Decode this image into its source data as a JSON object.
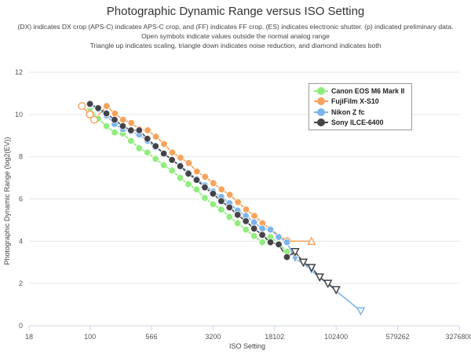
{
  "chart_data": {
    "type": "line",
    "title": "Photographic Dynamic Range versus ISO Setting",
    "subtitle_lines": [
      "(DX) indicates DX crop (APS-C) indicates APS-C crop, and (FF) indicates FF crop. (ES) indicates electronic shutter. (p) indicated preliminary data.",
      "Open symbols indicate values outside the normal analog range",
      "Triangle up indicates scaling, triangle down indicates noise reduction, and diamond indicates both"
    ],
    "xlabel": "ISO Setting",
    "ylabel": "Photographic Dynamic Range (log2(EV))",
    "x_scale": "log",
    "xlim": [
      18,
      3276800
    ],
    "ylim": [
      0,
      12
    ],
    "x_ticks": [
      18,
      100,
      566,
      3200,
      18102,
      102400,
      579262,
      3276800
    ],
    "x_tick_labels": [
      "18",
      "100",
      "566",
      "3200",
      "18102",
      "102400",
      "579262",
      "3276800"
    ],
    "y_ticks": [
      0,
      2,
      4,
      6,
      8,
      10,
      12
    ],
    "grid": "horizontal",
    "legend_position": "top-right",
    "series": [
      {
        "name": "Canon EOS M6 Mark II",
        "color": "#90ed7d",
        "points": [
          {
            "x": 100,
            "y": 10.3,
            "m": "circle"
          },
          {
            "x": 126,
            "y": 9.8,
            "m": "circle"
          },
          {
            "x": 159,
            "y": 9.45,
            "m": "circle"
          },
          {
            "x": 200,
            "y": 9.15,
            "m": "circle"
          },
          {
            "x": 252,
            "y": 9.1,
            "m": "circle"
          },
          {
            "x": 317,
            "y": 8.75,
            "m": "circle"
          },
          {
            "x": 400,
            "y": 8.4,
            "m": "circle"
          },
          {
            "x": 504,
            "y": 8.2,
            "m": "circle"
          },
          {
            "x": 635,
            "y": 7.9,
            "m": "circle"
          },
          {
            "x": 800,
            "y": 7.6,
            "m": "circle"
          },
          {
            "x": 1008,
            "y": 7.35,
            "m": "circle"
          },
          {
            "x": 1270,
            "y": 7.0,
            "m": "circle"
          },
          {
            "x": 1600,
            "y": 6.7,
            "m": "circle"
          },
          {
            "x": 2016,
            "y": 6.45,
            "m": "circle"
          },
          {
            "x": 2540,
            "y": 6.05,
            "m": "circle"
          },
          {
            "x": 3200,
            "y": 5.75,
            "m": "circle"
          },
          {
            "x": 4032,
            "y": 5.5,
            "m": "circle"
          },
          {
            "x": 5080,
            "y": 5.15,
            "m": "circle"
          },
          {
            "x": 6400,
            "y": 4.85,
            "m": "circle"
          },
          {
            "x": 8063,
            "y": 4.55,
            "m": "circle"
          },
          {
            "x": 10159,
            "y": 4.25,
            "m": "circle"
          },
          {
            "x": 12800,
            "y": 3.95,
            "m": "circle"
          },
          {
            "x": 16127,
            "y": 4.2,
            "m": "circle"
          },
          {
            "x": 20319,
            "y": 3.9,
            "m": "circle"
          },
          {
            "x": 25600,
            "y": 3.5,
            "m": "circle"
          }
        ]
      },
      {
        "name": "FujiFilm X-S10",
        "color": "#f7a35c",
        "points": [
          {
            "x": 80,
            "y": 10.4,
            "m": "open-circle"
          },
          {
            "x": 100,
            "y": 10.0,
            "m": "open-circle"
          },
          {
            "x": 113,
            "y": 9.75,
            "m": "open-circle"
          },
          {
            "x": 160,
            "y": 10.4,
            "m": "circle"
          },
          {
            "x": 202,
            "y": 10.05,
            "m": "circle"
          },
          {
            "x": 254,
            "y": 9.75,
            "m": "circle"
          },
          {
            "x": 320,
            "y": 9.6,
            "m": "circle"
          },
          {
            "x": 403,
            "y": 9.3,
            "m": "circle"
          },
          {
            "x": 508,
            "y": 9.25,
            "m": "circle"
          },
          {
            "x": 640,
            "y": 8.95,
            "m": "circle"
          },
          {
            "x": 806,
            "y": 8.6,
            "m": "circle"
          },
          {
            "x": 1016,
            "y": 8.2,
            "m": "circle"
          },
          {
            "x": 1280,
            "y": 7.95,
            "m": "circle"
          },
          {
            "x": 1613,
            "y": 7.7,
            "m": "circle"
          },
          {
            "x": 2032,
            "y": 7.3,
            "m": "circle"
          },
          {
            "x": 2560,
            "y": 7.05,
            "m": "circle"
          },
          {
            "x": 3225,
            "y": 6.75,
            "m": "circle"
          },
          {
            "x": 4064,
            "y": 6.45,
            "m": "circle"
          },
          {
            "x": 5120,
            "y": 6.2,
            "m": "circle"
          },
          {
            "x": 6451,
            "y": 5.85,
            "m": "circle"
          },
          {
            "x": 8127,
            "y": 5.5,
            "m": "circle"
          },
          {
            "x": 10240,
            "y": 5.2,
            "m": "circle"
          },
          {
            "x": 12902,
            "y": 4.85,
            "m": "circle"
          },
          {
            "x": 25600,
            "y": 4.0,
            "m": "open-circle"
          },
          {
            "x": 51200,
            "y": 4.0,
            "m": "open-triangle-up"
          }
        ]
      },
      {
        "name": "Nikon Z fc",
        "color": "#7cb5ec",
        "points": [
          {
            "x": 100,
            "y": 10.45,
            "m": "circle"
          },
          {
            "x": 126,
            "y": 10.25,
            "m": "circle"
          },
          {
            "x": 159,
            "y": 9.95,
            "m": "circle"
          },
          {
            "x": 200,
            "y": 9.55,
            "m": "circle"
          },
          {
            "x": 252,
            "y": 9.3,
            "m": "circle"
          },
          {
            "x": 317,
            "y": 9.2,
            "m": "circle"
          },
          {
            "x": 400,
            "y": 9.05,
            "m": "circle"
          },
          {
            "x": 504,
            "y": 8.75,
            "m": "circle"
          },
          {
            "x": 635,
            "y": 8.45,
            "m": "circle"
          },
          {
            "x": 800,
            "y": 8.15,
            "m": "circle"
          },
          {
            "x": 1008,
            "y": 7.85,
            "m": "circle"
          },
          {
            "x": 1270,
            "y": 7.6,
            "m": "circle"
          },
          {
            "x": 1600,
            "y": 7.25,
            "m": "circle"
          },
          {
            "x": 2016,
            "y": 6.95,
            "m": "circle"
          },
          {
            "x": 2540,
            "y": 6.65,
            "m": "circle"
          },
          {
            "x": 3200,
            "y": 6.35,
            "m": "circle"
          },
          {
            "x": 4032,
            "y": 6.1,
            "m": "circle"
          },
          {
            "x": 5080,
            "y": 5.8,
            "m": "circle"
          },
          {
            "x": 6400,
            "y": 5.45,
            "m": "circle"
          },
          {
            "x": 8063,
            "y": 5.2,
            "m": "circle"
          },
          {
            "x": 10159,
            "y": 4.9,
            "m": "circle"
          },
          {
            "x": 12800,
            "y": 4.6,
            "m": "circle"
          },
          {
            "x": 16127,
            "y": 4.55,
            "m": "circle"
          },
          {
            "x": 20319,
            "y": 4.2,
            "m": "circle"
          },
          {
            "x": 25600,
            "y": 3.95,
            "m": "circle"
          },
          {
            "x": 32254,
            "y": 3.15,
            "m": "triangle-down"
          },
          {
            "x": 40637,
            "y": 2.95,
            "m": "triangle-down"
          },
          {
            "x": 51200,
            "y": 2.6,
            "m": "triangle-down"
          },
          {
            "x": 204800,
            "y": 0.7,
            "m": "open-triangle-down"
          }
        ]
      },
      {
        "name": "Sony ILCE-6400",
        "color": "#434348",
        "points": [
          {
            "x": 100,
            "y": 10.5,
            "m": "circle"
          },
          {
            "x": 126,
            "y": 10.3,
            "m": "circle"
          },
          {
            "x": 159,
            "y": 10.05,
            "m": "circle"
          },
          {
            "x": 200,
            "y": 9.75,
            "m": "circle"
          },
          {
            "x": 252,
            "y": 9.45,
            "m": "circle"
          },
          {
            "x": 317,
            "y": 9.25,
            "m": "circle"
          },
          {
            "x": 400,
            "y": 9.25,
            "m": "circle"
          },
          {
            "x": 504,
            "y": 8.85,
            "m": "circle"
          },
          {
            "x": 635,
            "y": 8.5,
            "m": "circle"
          },
          {
            "x": 800,
            "y": 8.15,
            "m": "circle"
          },
          {
            "x": 1008,
            "y": 7.85,
            "m": "circle"
          },
          {
            "x": 1270,
            "y": 7.55,
            "m": "circle"
          },
          {
            "x": 1600,
            "y": 7.2,
            "m": "circle"
          },
          {
            "x": 2016,
            "y": 6.9,
            "m": "circle"
          },
          {
            "x": 2540,
            "y": 6.55,
            "m": "circle"
          },
          {
            "x": 3200,
            "y": 6.25,
            "m": "circle"
          },
          {
            "x": 4032,
            "y": 5.9,
            "m": "circle"
          },
          {
            "x": 5080,
            "y": 5.6,
            "m": "circle"
          },
          {
            "x": 6400,
            "y": 5.25,
            "m": "circle"
          },
          {
            "x": 8063,
            "y": 4.95,
            "m": "circle"
          },
          {
            "x": 10159,
            "y": 4.6,
            "m": "circle"
          },
          {
            "x": 12800,
            "y": 4.3,
            "m": "circle"
          },
          {
            "x": 16127,
            "y": 3.95,
            "m": "circle"
          },
          {
            "x": 20319,
            "y": 3.85,
            "m": "circle"
          },
          {
            "x": 25600,
            "y": 3.25,
            "m": "circle"
          },
          {
            "x": 32254,
            "y": 3.5,
            "m": "open-triangle-down"
          },
          {
            "x": 40637,
            "y": 3.0,
            "m": "open-triangle-down"
          },
          {
            "x": 51200,
            "y": 2.75,
            "m": "open-triangle-down"
          },
          {
            "x": 64508,
            "y": 2.3,
            "m": "open-triangle-down"
          },
          {
            "x": 81275,
            "y": 2.0,
            "m": "open-triangle-down"
          },
          {
            "x": 102400,
            "y": 1.7,
            "m": "open-triangle-down"
          }
        ]
      }
    ]
  }
}
